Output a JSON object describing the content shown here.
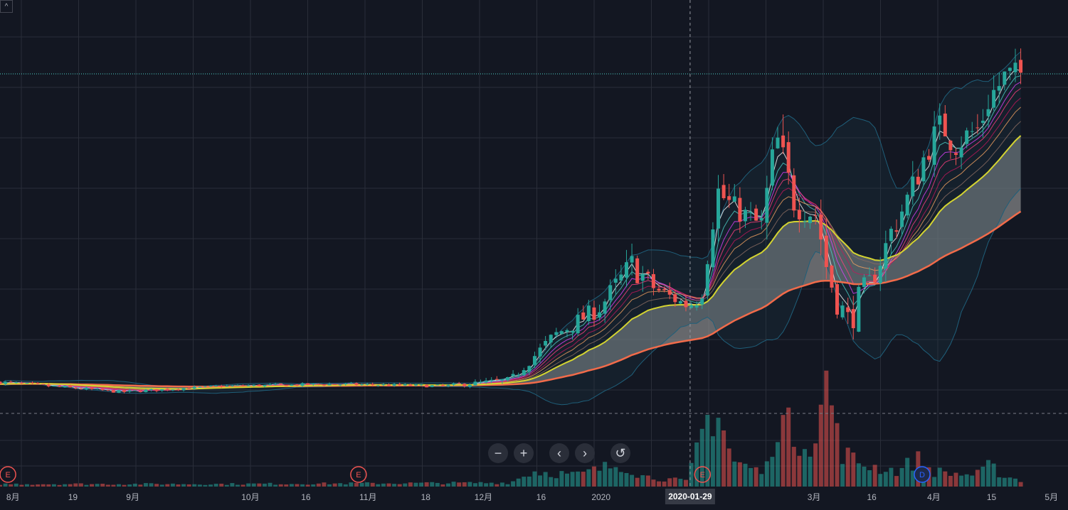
{
  "colors": {
    "background": "#131722",
    "grid": "#2a2e39",
    "up": "#26a69a",
    "down": "#ef5350",
    "ma_long": "#f26b4a",
    "ma_mid": "#d4d431",
    "band": "#1f5f7a",
    "fill": "#9e9e9e",
    "price_line": "#4dd0c8",
    "event_earnings": "#ef5350",
    "event_dividend": "#2962ff"
  },
  "toolbar": {
    "collapse_symbol": "^",
    "zoom_out_symbol": "−",
    "zoom_in_symbol": "+",
    "scroll_left_symbol": "‹",
    "scroll_right_symbol": "›",
    "reset_symbol": "↺"
  },
  "chart_data": {
    "type": "candlestick",
    "x_ticks": [
      {
        "label": "8月",
        "x": 0.2
      },
      {
        "label": "19",
        "x": 2.9
      },
      {
        "label": "9月",
        "x": 5.6
      },
      {
        "label": "10月",
        "x": 10.9
      },
      {
        "label": "16",
        "x": 13.4
      },
      {
        "label": "11月",
        "x": 16.2
      },
      {
        "label": "18",
        "x": 18.8
      },
      {
        "label": "12月",
        "x": 21.4
      },
      {
        "label": "16",
        "x": 24.0
      },
      {
        "label": "2020",
        "x": 26.7
      },
      {
        "label": "3月",
        "x": 36.3
      },
      {
        "label": "16",
        "x": 38.9
      },
      {
        "label": "4月",
        "x": 41.7
      },
      {
        "label": "15",
        "x": 44.3
      },
      {
        "label": "5月",
        "x": 47.0
      }
    ],
    "crosshair": {
      "x": 31.1,
      "label": "2020-01-29"
    },
    "events": [
      {
        "type": "E",
        "x": 0.1
      },
      {
        "type": "E",
        "x": 15.9
      },
      {
        "type": "E",
        "x": 31.4
      },
      {
        "type": "D",
        "x": 41.3
      }
    ],
    "ylim": [
      -12,
      100
    ],
    "last_price_line": 87,
    "dashed_level": 0,
    "anchors": [
      [
        0,
        8.0,
        0.6
      ],
      [
        5.5,
        5.5,
        0.5
      ],
      [
        10,
        7,
        0.4
      ],
      [
        15,
        7.5,
        0.5
      ],
      [
        20,
        7,
        0.5
      ],
      [
        23,
        8.5,
        1.2
      ],
      [
        25,
        20,
        2.5
      ],
      [
        27,
        27,
        3
      ],
      [
        28.5,
        38,
        5
      ],
      [
        29.5,
        32,
        3
      ],
      [
        31,
        27.5,
        2
      ],
      [
        31.6,
        30,
        3
      ],
      [
        32.3,
        57,
        6
      ],
      [
        33,
        53,
        4
      ],
      [
        34.3,
        48,
        4
      ],
      [
        35,
        70,
        8
      ],
      [
        35.8,
        54,
        5
      ],
      [
        36.8,
        51,
        5
      ],
      [
        37.3,
        36,
        6
      ],
      [
        37.8,
        28,
        5
      ],
      [
        38.3,
        23,
        5
      ],
      [
        38.8,
        31,
        4
      ],
      [
        39.4,
        35,
        3
      ],
      [
        40.2,
        47,
        5
      ],
      [
        41,
        56,
        5
      ],
      [
        41.8,
        68,
        5
      ],
      [
        42.5,
        74,
        6
      ],
      [
        43,
        69,
        5
      ],
      [
        44.1,
        73,
        5
      ],
      [
        44.6,
        81,
        5
      ],
      [
        45.3,
        86,
        6
      ],
      [
        46,
        87,
        4
      ]
    ],
    "volume_anchors": [
      [
        0,
        2
      ],
      [
        10,
        2
      ],
      [
        23,
        3
      ],
      [
        24,
        12
      ],
      [
        26,
        9
      ],
      [
        28,
        18
      ],
      [
        29,
        8
      ],
      [
        31,
        4
      ],
      [
        31.6,
        42
      ],
      [
        32.3,
        65
      ],
      [
        33,
        20
      ],
      [
        34.5,
        10
      ],
      [
        35,
        55
      ],
      [
        35.8,
        40
      ],
      [
        36.8,
        35
      ],
      [
        37.3,
        90
      ],
      [
        37.8,
        30
      ],
      [
        38.5,
        20
      ],
      [
        39.5,
        15
      ],
      [
        40.5,
        12
      ],
      [
        41.3,
        22
      ],
      [
        42,
        12
      ],
      [
        43,
        10
      ],
      [
        44,
        9
      ],
      [
        44.6,
        16
      ],
      [
        45.3,
        8
      ],
      [
        46,
        5
      ]
    ]
  }
}
